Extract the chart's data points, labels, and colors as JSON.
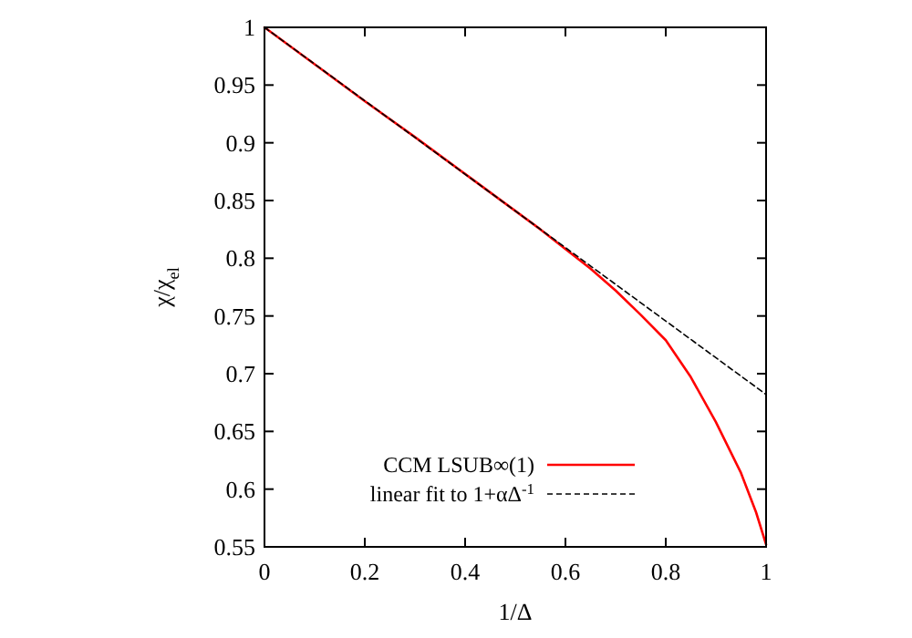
{
  "chart_data": {
    "type": "line",
    "xlabel": "1/Δ",
    "ylabel": "χ/χ$_{el}$",
    "xlim": [
      0,
      1
    ],
    "ylim": [
      0.55,
      1
    ],
    "xticks": [
      0,
      0.2,
      0.4,
      0.6,
      0.8,
      1
    ],
    "yticks": [
      0.55,
      0.6,
      0.65,
      0.7,
      0.75,
      0.8,
      0.85,
      0.9,
      0.95,
      1
    ],
    "grid": false,
    "legend": "bottom",
    "marker": "none",
    "series": [
      {
        "name": "CCM LSUB∞(1)",
        "color": "#ff0000",
        "line_style": "solid",
        "x": [
          0,
          0.1,
          0.2,
          0.3,
          0.4,
          0.5,
          0.55,
          0.6,
          0.65,
          0.7,
          0.75,
          0.8,
          0.85,
          0.9,
          0.95,
          0.98,
          1
        ],
        "values": [
          1,
          0.968,
          0.936,
          0.905,
          0.873,
          0.841,
          0.825,
          0.808,
          0.791,
          0.772,
          0.751,
          0.729,
          0.697,
          0.658,
          0.614,
          0.58,
          0.552
        ]
      },
      {
        "name": "linear fit to 1+αΔ$^{-1}$",
        "color": "#000000",
        "line_style": "dashed",
        "x": [
          0,
          1
        ],
        "values": [
          1,
          0.682
        ]
      }
    ]
  }
}
